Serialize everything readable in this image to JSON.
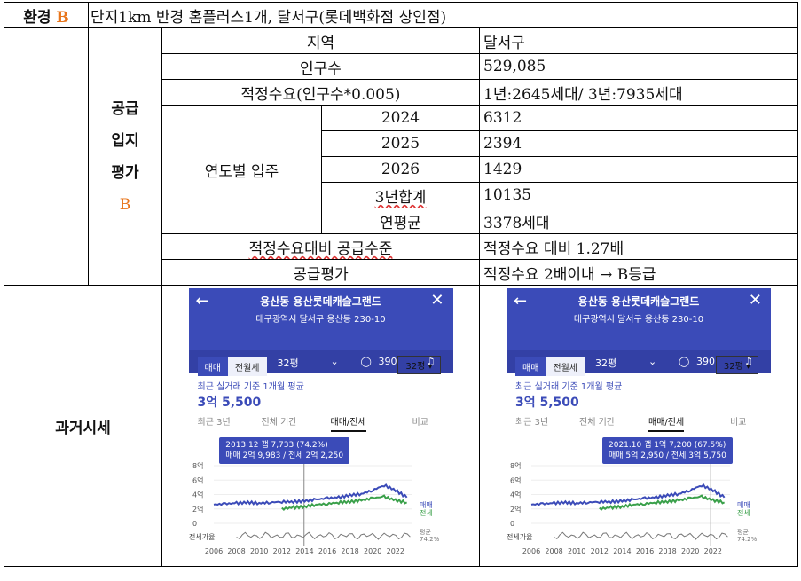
{
  "env_row": {
    "label": "환경",
    "grade": "B",
    "text": "단지1km 반경 홈플러스1개, 달서구(롯데백화점 상인점)"
  },
  "supply": {
    "label_lines": [
      "공급",
      "입지",
      "평가"
    ],
    "grade": "B",
    "rows": {
      "region": {
        "label": "지역",
        "value": "달서구"
      },
      "population": {
        "label": "인구수",
        "value": "529,085"
      },
      "demand": {
        "label": "적정수요(인구수*0.005)",
        "value": "1년:2645세대/ 3년:7935세대"
      },
      "yearly_label": "연도별 입주",
      "yearly": [
        {
          "year": "2024",
          "value": "6312"
        },
        {
          "year": "2025",
          "value": "2394"
        },
        {
          "year": "2026",
          "value": "1429"
        },
        {
          "year": "3년합계",
          "value": "10135"
        },
        {
          "year": "연평균",
          "value": "3378세대"
        }
      ],
      "ratio": {
        "label": "적정수요대비 공급수준",
        "value": "적정수요 대비 1.27배"
      },
      "eval": {
        "label": "공급평가",
        "value": "적정수요 2배이내 → B등급"
      }
    }
  },
  "past": {
    "label": "과거시세",
    "phones": [
      {
        "title": "용산동 용산롯데캐슬그랜드",
        "address": "대구광역시 달서구 용산동 230-10",
        "bar": {
          "trade": "매매",
          "size": "32평",
          "comments": "390"
        },
        "toggle": [
          "매매",
          "전월세"
        ],
        "select": "32평 ▾",
        "avg_label": "최근 실거래 기준 1개월 평균",
        "price": "3억 5,500",
        "tabs": [
          "최근 3년",
          "전체 기간",
          "매매/전세",
          "비교"
        ],
        "tooltip_line1": "2013.12 갭 7,733 (74.2%)",
        "tooltip_line2": "매매 2억 9,983 / 전세 2억 2,250",
        "marker_year": 2013.95
      },
      {
        "title": "용산동 용산롯데캐슬그랜드",
        "address": "대구광역시 달서구 용산동 230-10",
        "bar": {
          "trade": "매매",
          "size": "32평",
          "comments": "390"
        },
        "toggle": [
          "매매",
          "전월세"
        ],
        "select": "32평 ▾",
        "avg_label": "최근 실거래 기준 1개월 평균",
        "price": "3억 5,500",
        "tabs": [
          "최근 3년",
          "전체 기간",
          "매매/전세",
          "비교"
        ],
        "tooltip_line1": "2021.10 갭 1억 7,200 (67.5%)",
        "tooltip_line2": "매매 5억 2,950 / 전세 3억 5,750",
        "marker_year": 2021.8
      }
    ],
    "chart_data": {
      "type": "line",
      "y_ticks": [
        "8억",
        "6억",
        "4억",
        "2억",
        "0"
      ],
      "ylim": [
        0,
        8
      ],
      "x_ticks": [
        "2006",
        "2008",
        "2010",
        "2012",
        "2014",
        "2016",
        "2018",
        "2020",
        "2022"
      ],
      "series": [
        {
          "name": "매매",
          "color": "#3b4bb8",
          "x": [
            2006,
            2007,
            2008,
            2009,
            2010,
            2011,
            2012,
            2013,
            2014,
            2015,
            2016,
            2017,
            2018,
            2019,
            2020,
            2021,
            2022,
            2023
          ],
          "values": [
            2.6,
            2.7,
            2.8,
            2.9,
            2.8,
            2.9,
            3.0,
            3.0,
            3.1,
            3.3,
            3.5,
            3.6,
            3.9,
            4.1,
            4.6,
            5.3,
            4.6,
            3.6
          ]
        },
        {
          "name": "전세",
          "color": "#3aa04a",
          "x": [
            2012,
            2013,
            2014,
            2015,
            2016,
            2017,
            2018,
            2019,
            2020,
            2021,
            2022,
            2023
          ],
          "values": [
            2.0,
            2.2,
            2.3,
            2.6,
            2.7,
            2.9,
            3.0,
            3.2,
            3.5,
            3.7,
            3.2,
            2.9
          ]
        }
      ],
      "side_labels": [
        "매매",
        "전세"
      ],
      "lower_label": "전세가율",
      "lower_right": [
        "평균",
        "74.2%"
      ]
    }
  }
}
